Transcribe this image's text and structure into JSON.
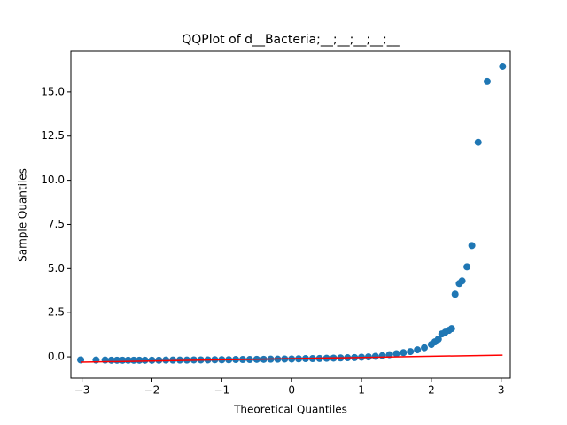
{
  "chart_data": {
    "type": "scatter",
    "title": "QQPlot of d__Bacteria;__;__;__;__;__",
    "x_label": "Theoretical Quantiles",
    "y_label": "Sample Quantiles",
    "xlim": [
      -3.16,
      3.13
    ],
    "ylim": [
      -1.2,
      17.3
    ],
    "xticks": [
      {
        "value": -3,
        "label": "−3"
      },
      {
        "value": -2,
        "label": "−2"
      },
      {
        "value": -1,
        "label": "−1"
      },
      0,
      1,
      2,
      3
    ],
    "yticks": [
      {
        "value": 0,
        "label": "0.0"
      },
      2.5,
      {
        "value": 5,
        "label": "5.0"
      },
      7.5,
      {
        "value": 10,
        "label": "10.0"
      },
      12.5,
      {
        "value": 15,
        "label": "15.0"
      }
    ],
    "series": [
      {
        "mode": "markers",
        "color": "#1f77b4",
        "x": [
          -3.02,
          -2.8,
          -2.67,
          -2.58,
          -2.5,
          -2.42,
          -2.34,
          -2.26,
          -2.18,
          -2.1,
          -2.0,
          -1.9,
          -1.8,
          -1.7,
          -1.6,
          -1.5,
          -1.4,
          -1.3,
          -1.2,
          -1.1,
          -1.0,
          -0.9,
          -0.8,
          -0.7,
          -0.6,
          -0.5,
          -0.4,
          -0.3,
          -0.2,
          -0.1,
          0.0,
          0.1,
          0.2,
          0.3,
          0.4,
          0.5,
          0.6,
          0.7,
          0.8,
          0.9,
          1.0,
          1.1,
          1.2,
          1.3,
          1.4,
          1.5,
          1.6,
          1.7,
          1.8,
          1.9,
          2.0,
          2.05,
          2.1,
          2.15,
          2.2,
          2.25,
          2.29,
          2.34,
          2.4,
          2.44,
          2.51,
          2.58,
          2.67,
          2.8,
          3.02
        ],
        "values": [
          -0.17,
          -0.18,
          -0.18,
          -0.19,
          -0.19,
          -0.19,
          -0.19,
          -0.19,
          -0.19,
          -0.19,
          -0.19,
          -0.19,
          -0.18,
          -0.18,
          -0.18,
          -0.18,
          -0.17,
          -0.17,
          -0.17,
          -0.16,
          -0.16,
          -0.16,
          -0.15,
          -0.15,
          -0.15,
          -0.14,
          -0.14,
          -0.13,
          -0.13,
          -0.12,
          -0.12,
          -0.11,
          -0.1,
          -0.1,
          -0.09,
          -0.08,
          -0.07,
          -0.06,
          -0.05,
          -0.04,
          -0.02,
          0.0,
          0.03,
          0.07,
          0.12,
          0.18,
          0.24,
          0.3,
          0.4,
          0.52,
          0.7,
          0.85,
          1.0,
          1.3,
          1.4,
          1.5,
          1.6,
          3.55,
          4.15,
          4.3,
          5.1,
          6.3,
          12.15,
          15.6,
          16.45
        ]
      },
      {
        "mode": "line",
        "color": "#ff0000",
        "x": [
          -3.02,
          3.02
        ],
        "values": [
          -0.3,
          0.1
        ]
      }
    ]
  }
}
